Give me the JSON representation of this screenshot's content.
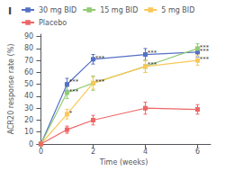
{
  "chart_data": {
    "type": "line",
    "title": "I",
    "xlabel": "Time (weeks)",
    "ylabel": "ACR20 response rate (%)",
    "xlim": [
      -0.15,
      6.5
    ],
    "ylim": [
      0,
      92
    ],
    "xticks": [
      0,
      2,
      4,
      6
    ],
    "yticks": [
      0,
      10,
      20,
      30,
      40,
      50,
      60,
      70,
      80,
      90
    ],
    "grid": false,
    "legend": "upper left",
    "marker": "square",
    "series": [
      {
        "name": "30 mg BID",
        "x": [
          0,
          1,
          2,
          4,
          6
        ],
        "values": [
          0,
          50,
          71,
          75,
          77
        ],
        "yerr": [
          0,
          5,
          4,
          5,
          4
        ]
      },
      {
        "name": "15 mg BID",
        "x": [
          0,
          1,
          2,
          4,
          6
        ],
        "values": [
          0,
          43,
          51,
          65,
          80
        ],
        "yerr": [
          0,
          5,
          6,
          5,
          4
        ]
      },
      {
        "name": "5 mg BID",
        "x": [
          0,
          1,
          2,
          4,
          6
        ],
        "values": [
          0,
          25,
          51,
          65,
          70
        ],
        "yerr": [
          0,
          4,
          5,
          5,
          4
        ]
      },
      {
        "name": "Placebo",
        "x": [
          0,
          1,
          2,
          4,
          6
        ],
        "values": [
          0,
          12,
          20,
          30,
          29
        ],
        "yerr": [
          0,
          3,
          4,
          5,
          4
        ]
      }
    ],
    "annotations": [
      {
        "x": 1.08,
        "y": 52,
        "text": "***"
      },
      {
        "x": 1.08,
        "y": 44,
        "text": "***"
      },
      {
        "x": 1.08,
        "y": 26,
        "text": "*"
      },
      {
        "x": 2.08,
        "y": 72,
        "text": "***"
      },
      {
        "x": 2.08,
        "y": 52,
        "text": "***"
      },
      {
        "x": 4.08,
        "y": 76,
        "text": "***"
      },
      {
        "x": 4.08,
        "y": 66,
        "text": "***"
      },
      {
        "x": 6.08,
        "y": 81,
        "text": "***"
      },
      {
        "x": 6.08,
        "y": 78,
        "text": "***"
      },
      {
        "x": 6.08,
        "y": 71,
        "text": "***"
      }
    ]
  }
}
